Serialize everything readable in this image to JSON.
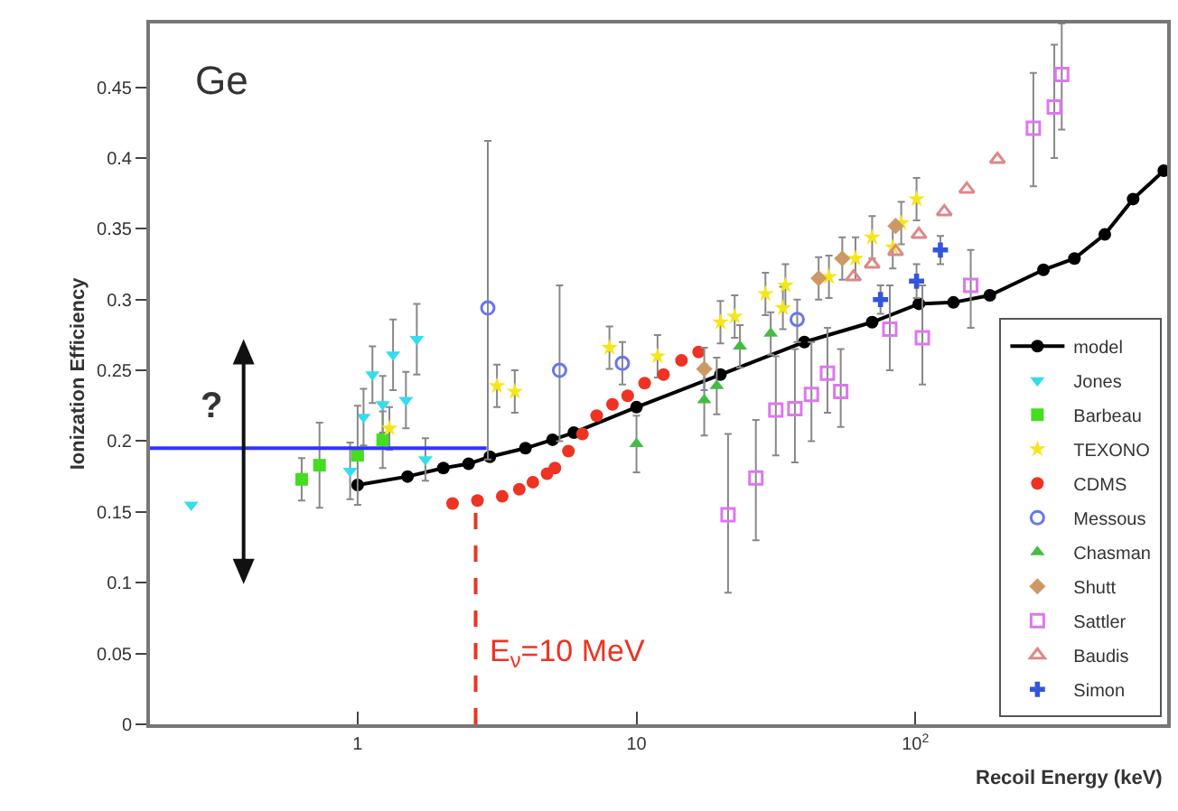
{
  "chart_data": {
    "type": "scatter",
    "xlabel": "Recoil Energy (keV)",
    "ylabel": "Ionization Efficiency",
    "annotations": [
      "Ge",
      "?",
      {
        "text": "E$_{ν}$=10 MeV",
        "x": 2.65,
        "y": 0.05
      }
    ],
    "log": "x",
    "xlim": [
      0.18,
      800
    ],
    "xticks": [
      1,
      10,
      {
        "value": 100,
        "label": "10$^{2}$"
      }
    ],
    "ylim": [
      0,
      0.495
    ],
    "yticks": [
      0,
      0.05,
      0.1,
      0.15,
      0.2,
      0.25,
      0.3,
      0.35,
      0.4,
      0.45
    ],
    "grid": false,
    "legend": "bottom right",
    "series": [
      {
        "name": "model",
        "type": "line",
        "color": "#000000",
        "marker": "circle",
        "x": [
          1,
          1.51,
          2.03,
          2.5,
          2.98,
          4,
          5,
          5.96,
          10,
          20,
          40,
          70,
          103,
          137,
          185,
          288,
          372,
          478,
          604,
          778
        ],
        "values": [
          0.169,
          0.175,
          0.181,
          0.184,
          0.189,
          0.195,
          0.201,
          0.206,
          0.224,
          0.247,
          0.27,
          0.284,
          0.297,
          0.298,
          0.303,
          0.321,
          0.329,
          0.346,
          0.371,
          0.391
        ]
      },
      {
        "name": "Jones",
        "color": "#33ddee",
        "marker": "triangle-down",
        "x": [
          0.253,
          0.94,
          1.05,
          1.13,
          1.23,
          1.34,
          1.49,
          1.63,
          1.75
        ],
        "values": [
          0.155,
          0.179,
          0.217,
          0.247,
          0.226,
          0.261,
          0.229,
          0.272,
          0.187
        ],
        "errors": [
          null,
          0.02,
          0.02,
          0.02,
          0.02,
          0.025,
          0.02,
          0.025,
          0.015
        ]
      },
      {
        "name": "Barbeau",
        "color": "#44dd22",
        "marker": "square",
        "x": [
          0.63,
          0.73,
          1,
          1.23
        ],
        "values": [
          0.173,
          0.183,
          0.19,
          0.201
        ],
        "errors": [
          0.015,
          0.03,
          0.035,
          0.02
        ]
      },
      {
        "name": "TEXONO",
        "color": "#f5e61a",
        "marker": "star",
        "x": [
          1.3,
          3.16,
          3.66,
          8,
          11.9,
          20,
          22.5,
          29,
          33.5,
          34.2,
          49,
          61,
          70,
          83,
          89,
          101
        ],
        "values": [
          0.209,
          0.239,
          0.235,
          0.266,
          0.26,
          0.284,
          0.288,
          0.304,
          0.294,
          0.31,
          0.316,
          0.329,
          0.344,
          0.337,
          0.354,
          0.371
        ],
        "errors": [
          0.015,
          0.015,
          0.015,
          0.015,
          0.015,
          0.015,
          0.015,
          0.015,
          0.015,
          0.015,
          0.015,
          0.015,
          0.015,
          0.015,
          0.015,
          0.015
        ]
      },
      {
        "name": "CDMS",
        "color": "#ee3322",
        "marker": "circle",
        "x": [
          2.19,
          2.69,
          3.3,
          3.8,
          4.25,
          4.78,
          5.1,
          5.7,
          6.4,
          7.2,
          8.2,
          9.3,
          10.7,
          12.5,
          14.5,
          16.7
        ],
        "values": [
          0.156,
          0.158,
          0.161,
          0.166,
          0.171,
          0.177,
          0.181,
          0.193,
          0.205,
          0.218,
          0.226,
          0.232,
          0.241,
          0.247,
          0.257,
          0.263
        ]
      },
      {
        "name": "Messous",
        "color": "#6677ee",
        "marker": "circle-open",
        "x": [
          2.93,
          5.3,
          8.9,
          37.7
        ],
        "values": [
          0.294,
          0.25,
          0.255,
          0.286
        ],
        "errors": [
          [
            0.187,
            0.412
          ],
          [
            0.2,
            0.31
          ],
          [
            0.24,
            0.27
          ],
          [
            0.27,
            0.3
          ]
        ]
      },
      {
        "name": "Chasman",
        "color": "#44bb44",
        "marker": "triangle",
        "x": [
          10,
          17.5,
          19.4,
          23.5,
          30.3
        ],
        "values": [
          0.198,
          0.229,
          0.239,
          0.267,
          0.276
        ],
        "errors": [
          0.02,
          0.025,
          0.02,
          0.015,
          0.015
        ]
      },
      {
        "name": "Shutt",
        "color": "#cc9966",
        "marker": "diamond",
        "x": [
          17.5,
          45,
          54.7,
          85
        ],
        "values": [
          0.251,
          0.315,
          0.329,
          0.352
        ],
        "errors": [
          0.015,
          0.015,
          0.015,
          null
        ]
      },
      {
        "name": "Sattler",
        "color": "#dd77ee",
        "marker": "square-open",
        "x": [
          21.3,
          26.8,
          31.6,
          37,
          42.4,
          48.4,
          54,
          81,
          106,
          158,
          265,
          315,
          335
        ],
        "values": [
          0.148,
          0.174,
          0.222,
          0.223,
          0.233,
          0.248,
          0.235,
          0.279,
          0.273,
          0.31,
          0.421,
          0.436,
          0.459
        ],
        "errors": [
          [
            0.093,
            0.205
          ],
          [
            0.13,
            0.215
          ],
          [
            0.19,
            0.26
          ],
          [
            0.185,
            0.265
          ],
          [
            0.2,
            0.27
          ],
          [
            0.22,
            0.28
          ],
          [
            0.21,
            0.265
          ],
          [
            0.25,
            0.31
          ],
          [
            0.24,
            0.31
          ],
          [
            0.28,
            0.335
          ],
          [
            0.38,
            0.46
          ],
          [
            0.4,
            0.48
          ],
          [
            0.42,
            0.495
          ]
        ]
      },
      {
        "name": "Baudis",
        "color": "#dd8888",
        "marker": "triangle-open",
        "x": [
          60,
          70,
          85,
          103,
          127,
          153,
          197
        ],
        "values": [
          0.316,
          0.325,
          0.334,
          0.346,
          0.362,
          0.378,
          0.399
        ]
      },
      {
        "name": "Simon",
        "color": "#3355dd",
        "marker": "cross",
        "x": [
          75,
          101,
          123
        ],
        "values": [
          0.3,
          0.313,
          0.335
        ],
        "errors": [
          0.01,
          0.012,
          0.01
        ]
      },
      {
        "type": "line",
        "color": "#3333ff",
        "marker": "none",
        "x": [
          0.18,
          2.9
        ],
        "values": [
          0.195,
          0.195
        ]
      },
      {
        "type": "line",
        "color": "#ee3322",
        "marker": "none",
        "line_style": "dashed",
        "x": [
          2.65,
          2.65
        ],
        "values": [
          0,
          0.16
        ]
      }
    ]
  }
}
